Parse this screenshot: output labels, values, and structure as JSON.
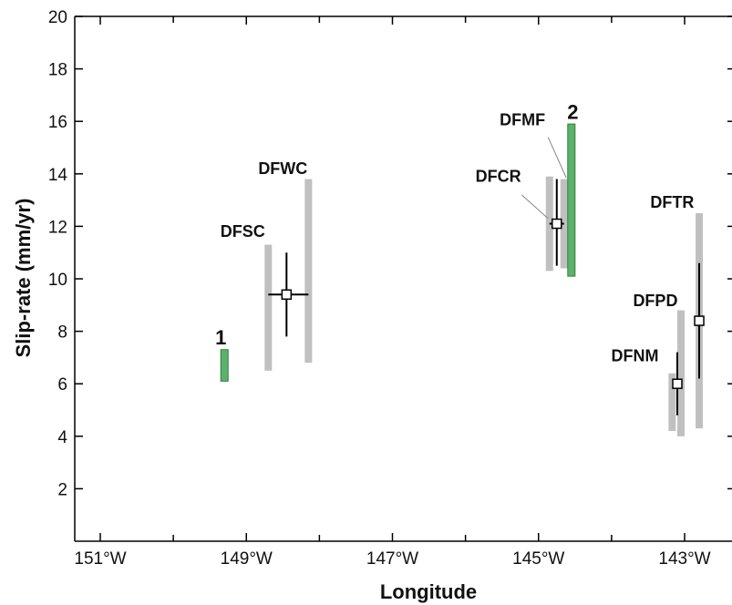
{
  "chart_data": {
    "type": "scatter",
    "xlabel": "Longitude",
    "ylabel": "Slip-rate (mm/yr)",
    "xlim": [
      -151.6,
      -142.2
    ],
    "ylim": [
      0,
      20
    ],
    "x_ticks": [
      -151,
      -149,
      -147,
      -145,
      -143
    ],
    "x_tick_labels": [
      "151°W",
      "149°W",
      "147°W",
      "145°W",
      "143°W"
    ],
    "y_ticks": [
      2,
      4,
      6,
      8,
      10,
      12,
      14,
      16,
      18,
      20
    ],
    "y_tick_labels": [
      "2",
      "4",
      "6",
      "8",
      "10",
      "12",
      "14",
      "16",
      "18",
      "20"
    ],
    "grid": false,
    "colors": {
      "range_bar": "#c0c0c0",
      "green_bar": "#5cb26b",
      "green_edge": "#2e7d3a",
      "axis": "#000000"
    },
    "gray_ranges": [
      {
        "id": "dfsc-range",
        "lon": -148.7,
        "low": 6.5,
        "high": 11.3
      },
      {
        "id": "dfwc-range",
        "lon": -148.15,
        "low": 6.8,
        "high": 13.8
      },
      {
        "id": "dfcr-range-a",
        "lon": -144.85,
        "low": 10.3,
        "high": 13.9
      },
      {
        "id": "dfcr-range-b",
        "lon": -144.65,
        "low": 10.4,
        "high": 13.8
      },
      {
        "id": "dfnm-range",
        "lon": -143.17,
        "low": 4.2,
        "high": 6.4
      },
      {
        "id": "dfpd-range",
        "lon": -143.05,
        "low": 4.0,
        "high": 8.8
      },
      {
        "id": "dftr-range",
        "lon": -142.8,
        "low": 4.3,
        "high": 12.5
      }
    ],
    "green_ranges": [
      {
        "id": "green-range-1",
        "lon": -149.3,
        "low": 6.1,
        "high": 7.3
      },
      {
        "id": "green-range-2",
        "lon": -144.55,
        "low": 10.1,
        "high": 15.9
      }
    ],
    "points": [
      {
        "id": "dfsc-dfwc-point",
        "lon": -148.45,
        "value": 9.4,
        "y_err_low": 7.8,
        "y_err_high": 11.0,
        "x_err_low": -148.7,
        "x_err_high": -148.15
      },
      {
        "id": "dfcr-point",
        "lon": -144.75,
        "value": 12.1,
        "y_err_low": 10.5,
        "y_err_high": 13.8,
        "x_err_low": -144.85,
        "x_err_high": -144.65
      },
      {
        "id": "dfnm-point",
        "lon": -143.1,
        "value": 6.0,
        "y_err_low": 4.8,
        "y_err_high": 7.2
      },
      {
        "id": "dftr-point",
        "lon": -142.8,
        "value": 8.4,
        "y_err_low": 6.2,
        "y_err_high": 10.6
      }
    ],
    "annotations": [
      {
        "id": "label-1",
        "text": "1",
        "big": true,
        "lon": -149.35,
        "y": 7.5
      },
      {
        "id": "label-2",
        "text": "2",
        "big": true,
        "lon": -144.53,
        "y": 16.1
      },
      {
        "id": "label-dfsc",
        "text": "DFSC",
        "lon": -149.05,
        "y": 11.6
      },
      {
        "id": "label-dfwc",
        "text": "DFWC",
        "lon": -148.5,
        "y": 14.0
      },
      {
        "id": "label-dfmf",
        "text": "DFMF",
        "lon": -145.22,
        "y": 15.85
      },
      {
        "id": "label-dfcr",
        "text": "DFCR",
        "lon": -145.55,
        "y": 13.7
      },
      {
        "id": "label-dftr",
        "text": "DFTR",
        "lon": -143.17,
        "y": 12.7
      },
      {
        "id": "label-dfpd",
        "text": "DFPD",
        "lon": -143.4,
        "y": 8.95
      },
      {
        "id": "label-dfnm",
        "text": "DFNM",
        "lon": -143.68,
        "y": 6.85
      }
    ],
    "leader_lines": [
      {
        "id": "leader-dfmf",
        "from": [
          -144.87,
          15.4
        ],
        "to": [
          -144.62,
          13.85
        ]
      },
      {
        "id": "leader-dfcr",
        "from": [
          -145.23,
          13.2
        ],
        "to": [
          -144.87,
          12.3
        ]
      }
    ]
  }
}
